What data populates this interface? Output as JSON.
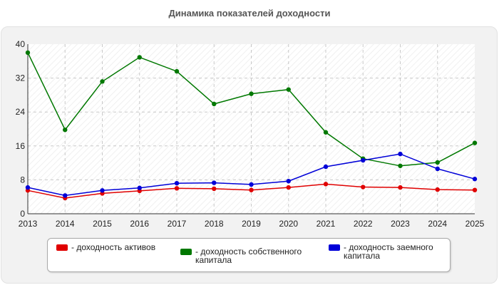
{
  "chart_data": {
    "type": "line",
    "title": "Динамика показателей доходности",
    "categories": [
      "2013",
      "2014",
      "2015",
      "2016",
      "2017",
      "2018",
      "2019",
      "2020",
      "2021",
      "2022",
      "2023",
      "2024",
      "2025"
    ],
    "y_ticks": [
      "0",
      "8",
      "16",
      "24",
      "32",
      "40"
    ],
    "ylim": [
      0,
      40
    ],
    "grid": true,
    "legend_position": "bottom",
    "series": [
      {
        "name": "- доходность активов",
        "color": "#e00000",
        "values": [
          5.5,
          3.7,
          4.8,
          5.4,
          6.0,
          5.9,
          5.6,
          6.2,
          7.0,
          6.3,
          6.2,
          5.7,
          5.6
        ]
      },
      {
        "name": "- доходность собственного капитала",
        "color": "#007800",
        "values": [
          38.0,
          19.8,
          31.2,
          36.9,
          33.6,
          25.9,
          28.3,
          29.3,
          19.2,
          13.0,
          11.3,
          12.1,
          16.7
        ]
      },
      {
        "name": "- доходность заемного капитала",
        "color": "#0000d8",
        "values": [
          6.2,
          4.3,
          5.5,
          6.1,
          7.2,
          7.3,
          6.9,
          7.7,
          11.1,
          12.6,
          14.1,
          10.6,
          8.2
        ]
      }
    ]
  }
}
